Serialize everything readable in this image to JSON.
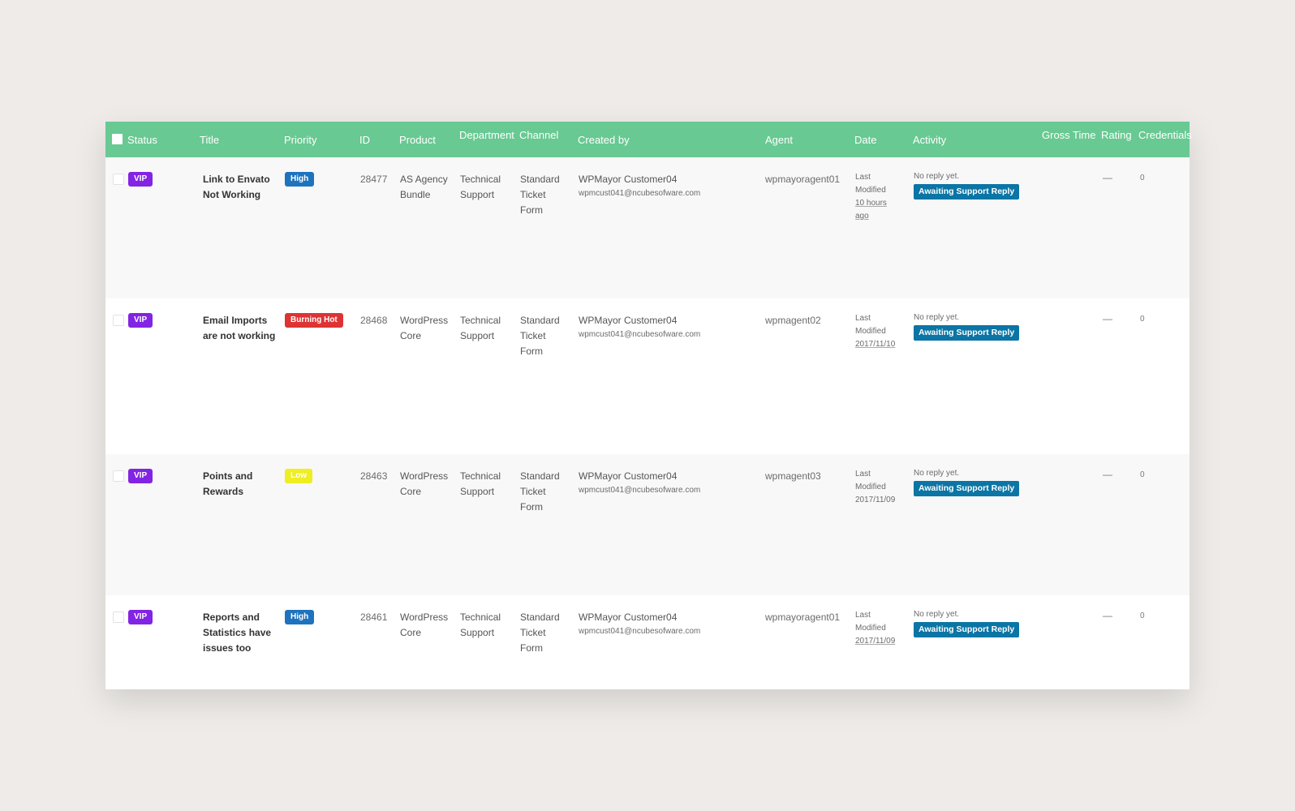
{
  "header": {
    "status": "Status",
    "title": "Title",
    "priority": "Priority",
    "id": "ID",
    "product": "Product",
    "department": "Department",
    "channel": "Channel",
    "created_by": "Created by",
    "agent": "Agent",
    "date": "Date",
    "activity": "Activity",
    "gross_time": "Gross Time",
    "rating": "Rating",
    "credentials": "Credentials"
  },
  "colors": {
    "header_bg": "#68c992",
    "vip": "#8224e3",
    "high": "#1e73be",
    "burning_hot": "#dd3333",
    "low": "#eeee22",
    "awaiting": "#0b75a5"
  },
  "tickets": [
    {
      "status": "VIP",
      "title": "Link to Envato Not Working",
      "priority": "High",
      "id": "28477",
      "product": "AS Agency Bundle",
      "department": "Technical Support",
      "channel": "Standard Ticket Form",
      "creator_name": "WPMayor Customer04",
      "creator_email": "wpmcust041@ncubesofware.com",
      "agent": "wpmayoragent01",
      "date_label": "Last Modified",
      "date_value": "10 hours ago",
      "activity_text": "No reply yet.",
      "activity_badge": "Awaiting Support Reply",
      "rating": "—",
      "credentials": "0"
    },
    {
      "status": "VIP",
      "title": "Email Imports are not working",
      "priority": "Burning Hot",
      "id": "28468",
      "product": "WordPress Core",
      "department": "Technical Support",
      "channel": "Standard Ticket Form",
      "creator_name": "WPMayor Customer04",
      "creator_email": "wpmcust041@ncubesofware.com",
      "agent": "wpmagent02",
      "date_label": "Last Modified",
      "date_value": "2017/11/10",
      "activity_text": "No reply yet.",
      "activity_badge": "Awaiting Support Reply",
      "rating": "—",
      "credentials": "0"
    },
    {
      "status": "VIP",
      "title": "Points and Rewards",
      "priority": "Low",
      "id": "28463",
      "product": "WordPress Core",
      "department": "Technical Support",
      "channel": "Standard Ticket Form",
      "creator_name": "WPMayor Customer04",
      "creator_email": "wpmcust041@ncubesofware.com",
      "agent": "wpmagent03",
      "date_label": "Last Modified",
      "date_value": "2017/11/09",
      "activity_text": "No reply yet.",
      "activity_badge": "Awaiting Support Reply",
      "rating": "—",
      "credentials": "0"
    },
    {
      "status": "VIP",
      "title": "Reports and Statistics have issues too",
      "priority": "High",
      "id": "28461",
      "product": "WordPress Core",
      "department": "Technical Support",
      "channel": "Standard Ticket Form",
      "creator_name": "WPMayor Customer04",
      "creator_email": "wpmcust041@ncubesofware.com",
      "agent": "wpmayoragent01",
      "date_label": "Last Modified",
      "date_value": "2017/11/09",
      "activity_text": "No reply yet.",
      "activity_badge": "Awaiting Support Reply",
      "rating": "—",
      "credentials": "0"
    }
  ]
}
